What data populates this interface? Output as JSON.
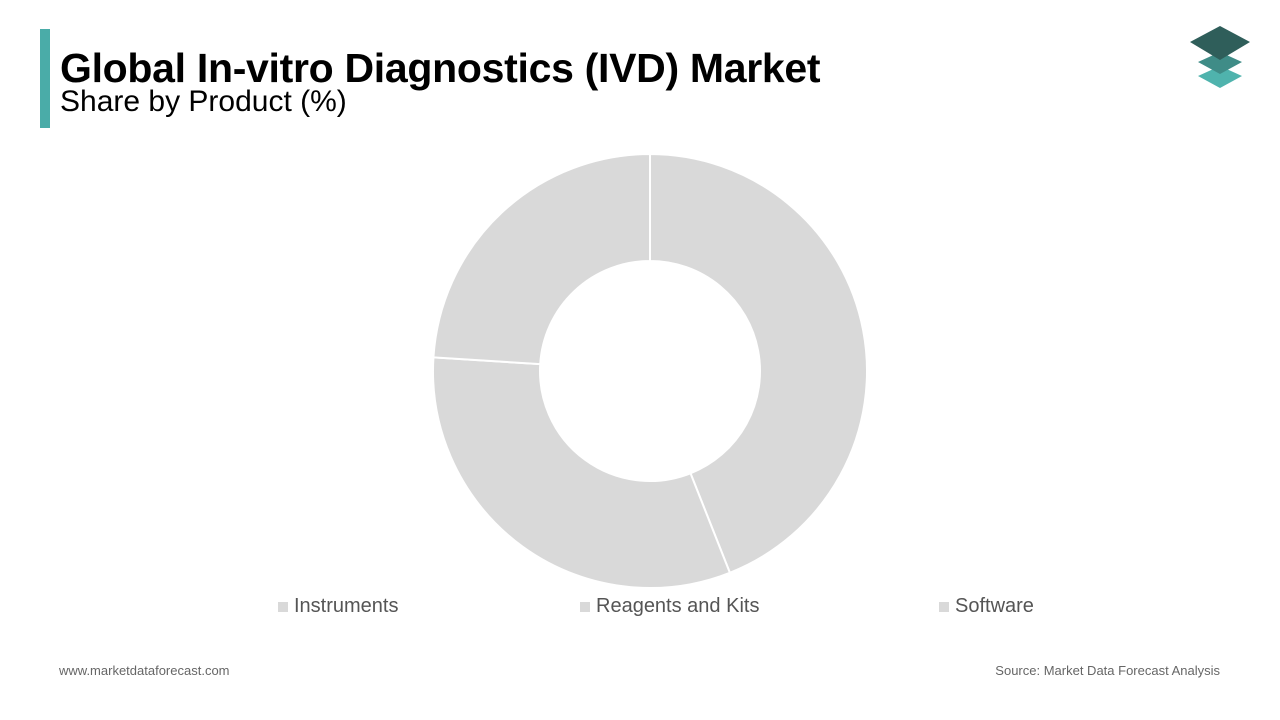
{
  "header": {
    "title": "Global In-vitro Diagnostics (IVD) Market",
    "subtitle": "Share by Product (%)",
    "accent_color": "#4aaca8"
  },
  "logo": {
    "icon": "stacked-layers-icon",
    "colors": [
      "#2f5e5a",
      "#3f8c87",
      "#4fb3ad"
    ]
  },
  "chart_data": {
    "type": "pie",
    "style": "donut",
    "categories": [
      "Instruments",
      "Reagents and Kits",
      "Software"
    ],
    "values": [
      44,
      32,
      24
    ],
    "colors": [
      "#d9d9d9",
      "#d9d9d9",
      "#d9d9d9"
    ],
    "legend_position": "bottom"
  },
  "footer": {
    "website": "www.marketdataforecast.com",
    "source": "Source: Market Data Forecast Analysis"
  }
}
